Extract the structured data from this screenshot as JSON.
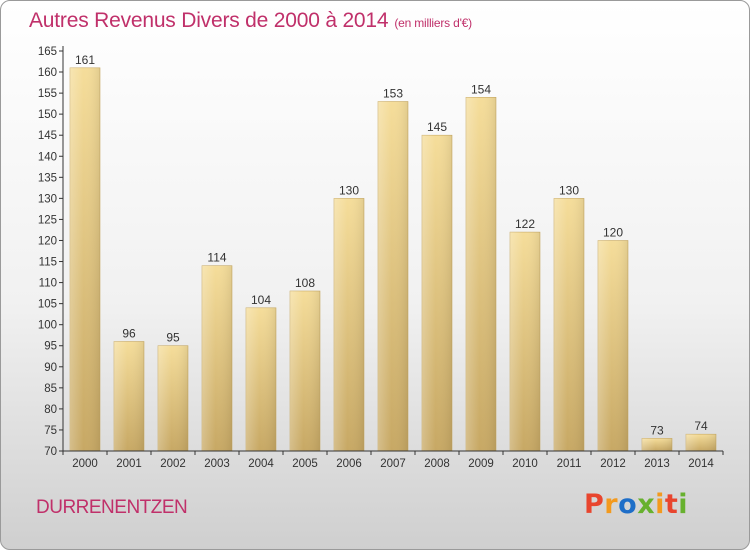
{
  "header": {
    "title": "Autres Revenus Divers de 2000 à 2014",
    "subtitle": "(en milliers d'€)"
  },
  "footer": {
    "commune": "DURRENENTZEN",
    "logo_text": "Proxiti",
    "logo_colors": [
      "#e8452e",
      "#f39a1e",
      "#1e6ec8",
      "#67b12e",
      "#f39a1e",
      "#e8452e",
      "#67b12e"
    ]
  },
  "chart_data": {
    "type": "bar",
    "title": "Autres Revenus Divers de 2000 à 2014",
    "xlabel": "",
    "ylabel": "",
    "ylim": [
      70,
      165
    ],
    "ytick_step": 5,
    "grid": false,
    "categories": [
      "2000",
      "2001",
      "2002",
      "2003",
      "2004",
      "2005",
      "2006",
      "2007",
      "2008",
      "2009",
      "2010",
      "2011",
      "2012",
      "2013",
      "2014"
    ],
    "values": [
      161,
      96,
      95,
      114,
      104,
      108,
      130,
      153,
      145,
      154,
      122,
      130,
      120,
      73,
      74
    ],
    "bar_color_top": "#f5dd9a",
    "bar_color_bottom": "#c7a864",
    "axis_color": "#333333",
    "label_color": "#333333"
  }
}
